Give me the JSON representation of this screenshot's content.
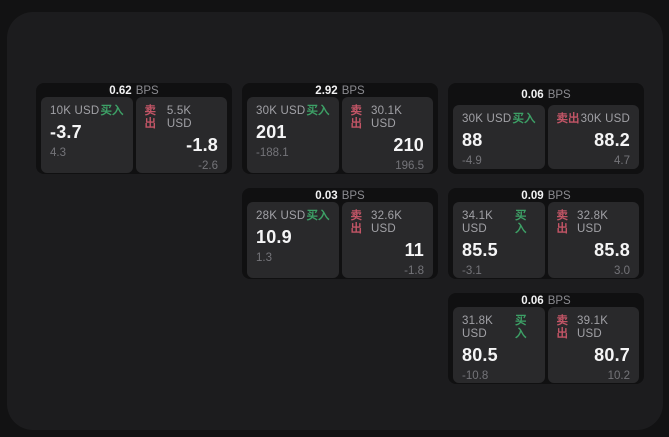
{
  "labels": {
    "buy": "买入",
    "sell": "卖出",
    "bps_unit": "BPS"
  },
  "colors": {
    "buy_green": "#3da066",
    "sell_red": "#c25566",
    "panel_bg": "#1c1c1e",
    "card_bg": "#101011",
    "pane_bg": "#29292b"
  },
  "cards": [
    {
      "bps": "0.62",
      "buy": {
        "size": "10K USD",
        "value": "-3.7",
        "sub": "4.3"
      },
      "sell": {
        "size": "5.5K USD",
        "value": "-1.8",
        "sub": "-2.6"
      }
    },
    {
      "bps": "2.92",
      "buy": {
        "size": "30K USD",
        "value": "201",
        "sub": "-188.1"
      },
      "sell": {
        "size": "30.1K USD",
        "value": "210",
        "sub": "196.5"
      }
    },
    {
      "bps": "0.06",
      "buy": {
        "size": "30K USD",
        "value": "88",
        "sub": "-4.9"
      },
      "sell": {
        "size": "30K USD",
        "value": "88.2",
        "sub": "4.7"
      }
    },
    {
      "bps": "0.03",
      "buy": {
        "size": "28K USD",
        "value": "10.9",
        "sub": "1.3"
      },
      "sell": {
        "size": "32.6K USD",
        "value": "11",
        "sub": "-1.8"
      }
    },
    {
      "bps": "0.09",
      "buy": {
        "size": "34.1K USD",
        "value": "85.5",
        "sub": "-3.1"
      },
      "sell": {
        "size": "32.8K USD",
        "value": "85.8",
        "sub": "3.0"
      }
    },
    {
      "bps": "0.06",
      "buy": {
        "size": "31.8K USD",
        "value": "80.5",
        "sub": "-10.8"
      },
      "sell": {
        "size": "39.1K USD",
        "value": "80.7",
        "sub": "10.2"
      }
    }
  ]
}
